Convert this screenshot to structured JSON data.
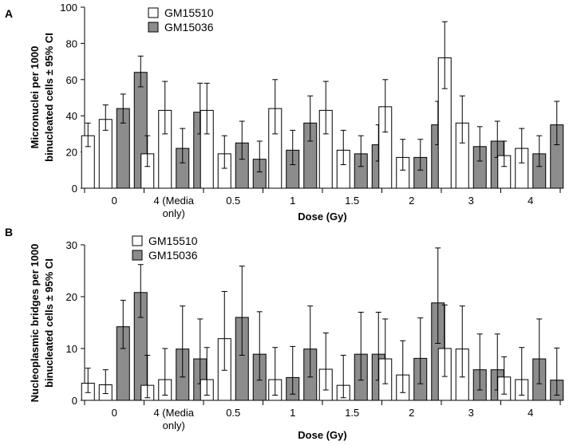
{
  "chart_data": [
    {
      "panel_label": "A",
      "type": "bar",
      "xlabel": "Dose (Gy)",
      "ylabel_lines": [
        "Micronuclei per 1000",
        "binucleated cells ± 95% CI"
      ],
      "ylim": [
        0,
        100
      ],
      "yticks": [
        0,
        20,
        40,
        60,
        80,
        100
      ],
      "categories": [
        [
          "0"
        ],
        [
          "4 (Media",
          "only)"
        ],
        [
          "0.5"
        ],
        [
          "1"
        ],
        [
          "1.5"
        ],
        [
          "2"
        ],
        [
          "3"
        ],
        [
          "4"
        ]
      ],
      "legend": [
        {
          "name": "GM15510",
          "color": "#ffffff"
        },
        {
          "name": "GM15036",
          "color": "#8c8c8c"
        }
      ],
      "groups": [
        {
          "bars": [
            {
              "series": "GM15510",
              "value": 29,
              "err_low": 23,
              "err_high": 36
            },
            {
              "series": "GM15510",
              "value": 38,
              "err_low": 32,
              "err_high": 46
            },
            {
              "series": "GM15036",
              "value": 44,
              "err_low": 36,
              "err_high": 52
            },
            {
              "series": "GM15036",
              "value": 64,
              "err_low": 56,
              "err_high": 73
            }
          ]
        },
        {
          "bars": [
            {
              "series": "GM15510",
              "value": 19,
              "err_low": 12,
              "err_high": 29
            },
            {
              "series": "GM15510",
              "value": 43,
              "err_low": 30,
              "err_high": 59
            },
            {
              "series": "GM15036",
              "value": 22,
              "err_low": 14,
              "err_high": 33
            },
            {
              "series": "GM15036",
              "value": 42,
              "err_low": 30,
              "err_high": 58
            }
          ]
        },
        {
          "bars": [
            {
              "series": "GM15510",
              "value": 43,
              "err_low": 30,
              "err_high": 58
            },
            {
              "series": "GM15510",
              "value": 19,
              "err_low": 11,
              "err_high": 29
            },
            {
              "series": "GM15036",
              "value": 25,
              "err_low": 16,
              "err_high": 37
            },
            {
              "series": "GM15036",
              "value": 16,
              "err_low": 9,
              "err_high": 26
            }
          ]
        },
        {
          "bars": [
            {
              "series": "GM15510",
              "value": 44,
              "err_low": 30,
              "err_high": 60
            },
            {
              "series": "GM15036",
              "value": 21,
              "err_low": 13,
              "err_high": 32
            },
            {
              "series": "GM15036",
              "value": 36,
              "err_low": 26,
              "err_high": 51
            }
          ]
        },
        {
          "bars": [
            {
              "series": "GM15510",
              "value": 43,
              "err_low": 30,
              "err_high": 59
            },
            {
              "series": "GM15510",
              "value": 21,
              "err_low": 13,
              "err_high": 32
            },
            {
              "series": "GM15036",
              "value": 19,
              "err_low": 12,
              "err_high": 29
            },
            {
              "series": "GM15036",
              "value": 24,
              "err_low": 15,
              "err_high": 35
            }
          ]
        },
        {
          "bars": [
            {
              "series": "GM15510",
              "value": 45,
              "err_low": 31,
              "err_high": 60
            },
            {
              "series": "GM15510",
              "value": 17,
              "err_low": 10,
              "err_high": 27
            },
            {
              "series": "GM15036",
              "value": 17,
              "err_low": 10,
              "err_high": 27
            },
            {
              "series": "GM15036",
              "value": 35,
              "err_low": 24,
              "err_high": 48
            }
          ]
        },
        {
          "bars": [
            {
              "series": "GM15510",
              "value": 72,
              "err_low": 55,
              "err_high": 92
            },
            {
              "series": "GM15510",
              "value": 36,
              "err_low": 25,
              "err_high": 51
            },
            {
              "series": "GM15036",
              "value": 23,
              "err_low": 15,
              "err_high": 34
            },
            {
              "series": "GM15036",
              "value": 26,
              "err_low": 17,
              "err_high": 37
            }
          ]
        },
        {
          "bars": [
            {
              "series": "GM15510",
              "value": 18,
              "err_low": 12,
              "err_high": 26
            },
            {
              "series": "GM15510",
              "value": 22,
              "err_low": 14,
              "err_high": 33
            },
            {
              "series": "GM15036",
              "value": 19,
              "err_low": 12,
              "err_high": 29
            },
            {
              "series": "GM15036",
              "value": 35,
              "err_low": 24,
              "err_high": 48
            }
          ]
        }
      ]
    },
    {
      "panel_label": "B",
      "type": "bar",
      "xlabel": "Dose (Gy)",
      "ylabel_lines": [
        "Nucleoplasmic bridges per 1000",
        "binucleated cells ± 95% CI"
      ],
      "ylim": [
        0,
        30
      ],
      "yticks": [
        0,
        10,
        20,
        30
      ],
      "categories": [
        [
          "0"
        ],
        [
          "4 (Media",
          "only)"
        ],
        [
          "0.5"
        ],
        [
          "1"
        ],
        [
          "1.5"
        ],
        [
          "2"
        ],
        [
          "3"
        ],
        [
          "4"
        ]
      ],
      "legend": [
        {
          "name": "GM15510",
          "color": "#ffffff"
        },
        {
          "name": "GM15036",
          "color": "#8c8c8c"
        }
      ],
      "groups": [
        {
          "bars": [
            {
              "series": "GM15510",
              "value": 3.3,
              "err_low": 1.5,
              "err_high": 6.2
            },
            {
              "series": "GM15510",
              "value": 3.0,
              "err_low": 1.3,
              "err_high": 5.9
            },
            {
              "series": "GM15036",
              "value": 14.2,
              "err_low": 10.0,
              "err_high": 19.3
            },
            {
              "series": "GM15036",
              "value": 20.8,
              "err_low": 16.0,
              "err_high": 26.2
            }
          ]
        },
        {
          "bars": [
            {
              "series": "GM15510",
              "value": 2.9,
              "err_low": 0.5,
              "err_high": 8.7
            },
            {
              "series": "GM15510",
              "value": 4.0,
              "err_low": 1.0,
              "err_high": 10.0
            },
            {
              "series": "GM15036",
              "value": 9.9,
              "err_low": 4.5,
              "err_high": 18.2
            },
            {
              "series": "GM15036",
              "value": 8.0,
              "err_low": 3.2,
              "err_high": 15.7
            }
          ]
        },
        {
          "bars": [
            {
              "series": "GM15510",
              "value": 4.0,
              "err_low": 1.0,
              "err_high": 10.2
            },
            {
              "series": "GM15510",
              "value": 11.9,
              "err_low": 5.8,
              "err_high": 21.0
            },
            {
              "series": "GM15036",
              "value": 16.0,
              "err_low": 8.7,
              "err_high": 25.9
            },
            {
              "series": "GM15036",
              "value": 8.9,
              "err_low": 3.9,
              "err_high": 17.1
            }
          ]
        },
        {
          "bars": [
            {
              "series": "GM15510",
              "value": 4.0,
              "err_low": 1.0,
              "err_high": 10.2
            },
            {
              "series": "GM15036",
              "value": 4.4,
              "err_low": 1.2,
              "err_high": 10.4
            },
            {
              "series": "GM15036",
              "value": 9.9,
              "err_low": 4.5,
              "err_high": 18.2
            }
          ]
        },
        {
          "bars": [
            {
              "series": "GM15510",
              "value": 6.0,
              "err_low": 2.0,
              "err_high": 13.0
            },
            {
              "series": "GM15510",
              "value": 2.9,
              "err_low": 0.5,
              "err_high": 8.7
            },
            {
              "series": "GM15036",
              "value": 8.9,
              "err_low": 3.9,
              "err_high": 17.0
            },
            {
              "series": "GM15036",
              "value": 8.9,
              "err_low": 3.9,
              "err_high": 17.0
            }
          ]
        },
        {
          "bars": [
            {
              "series": "GM15510",
              "value": 8.0,
              "err_low": 3.2,
              "err_high": 15.7
            },
            {
              "series": "GM15510",
              "value": 4.9,
              "err_low": 1.5,
              "err_high": 11.5
            },
            {
              "series": "GM15036",
              "value": 8.1,
              "err_low": 3.2,
              "err_high": 15.9
            },
            {
              "series": "GM15036",
              "value": 18.8,
              "err_low": 11.0,
              "err_high": 29.4
            }
          ]
        },
        {
          "bars": [
            {
              "series": "GM15510",
              "value": 10.0,
              "err_low": 4.6,
              "err_high": 18.4
            },
            {
              "series": "GM15510",
              "value": 9.9,
              "err_low": 4.5,
              "err_high": 18.2
            },
            {
              "series": "GM15036",
              "value": 5.9,
              "err_low": 2.0,
              "err_high": 12.8
            },
            {
              "series": "GM15036",
              "value": 5.9,
              "err_low": 2.0,
              "err_high": 12.8
            }
          ]
        },
        {
          "bars": [
            {
              "series": "GM15510",
              "value": 4.5,
              "err_low": 1.2,
              "err_high": 8.4
            },
            {
              "series": "GM15510",
              "value": 4.0,
              "err_low": 1.0,
              "err_high": 10.2
            },
            {
              "series": "GM15036",
              "value": 8.0,
              "err_low": 3.2,
              "err_high": 15.7
            },
            {
              "series": "GM15036",
              "value": 3.9,
              "err_low": 1.0,
              "err_high": 10.1
            }
          ]
        }
      ]
    }
  ]
}
